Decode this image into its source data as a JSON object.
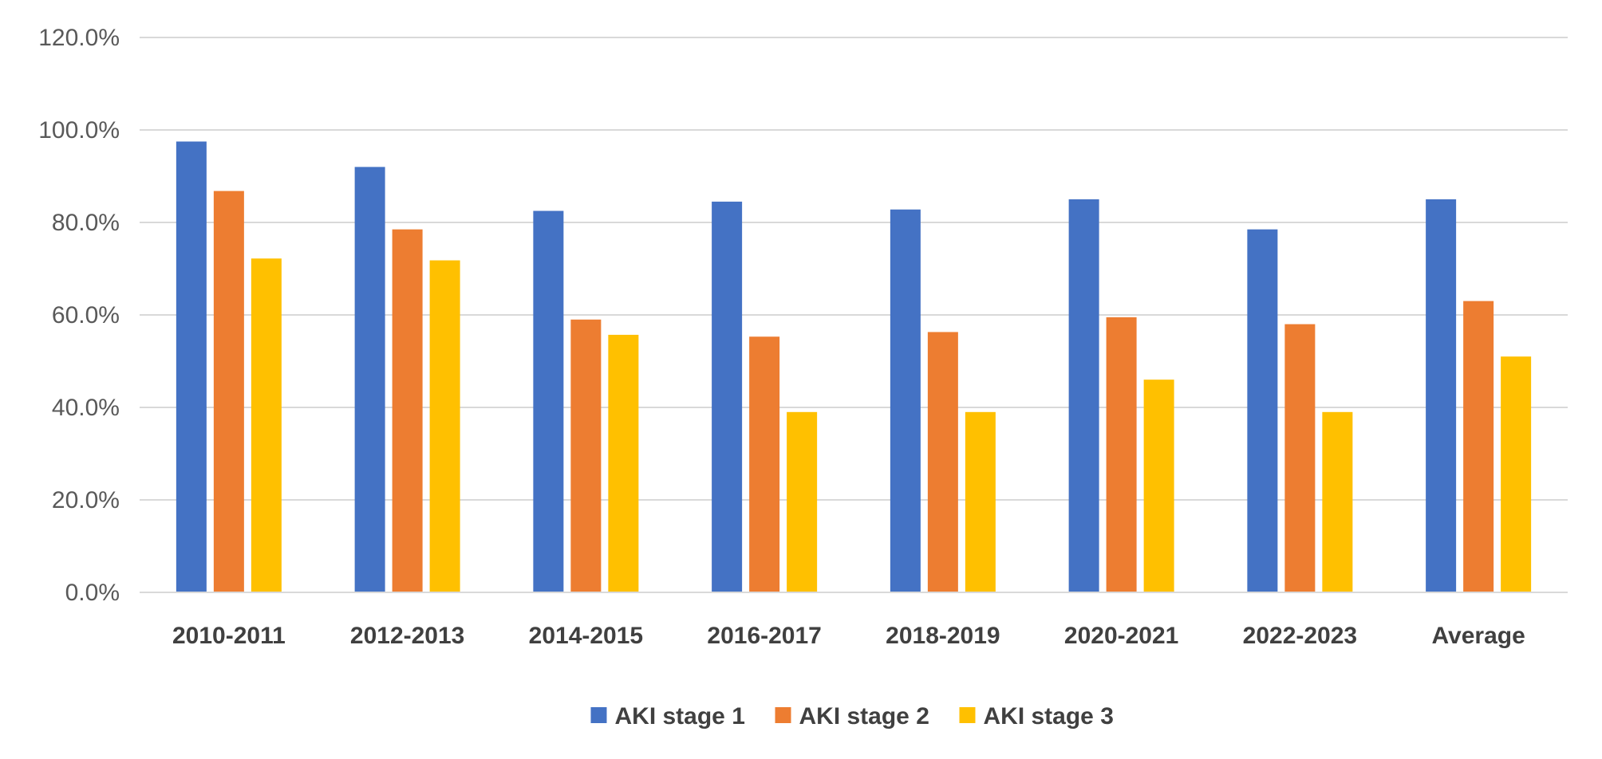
{
  "chart_data": {
    "type": "bar",
    "title": "",
    "xlabel": "",
    "ylabel": "",
    "ylim": [
      0,
      120
    ],
    "yticks": [
      "0.0%",
      "20.0%",
      "40.0%",
      "60.0%",
      "80.0%",
      "100.0%",
      "120.0%"
    ],
    "grid": true,
    "legend_position": "bottom",
    "categories": [
      "2010-2011",
      "2012-2013",
      "2014-2015",
      "2016-2017",
      "2018-2019",
      "2020-2021",
      "2022-2023",
      "Average"
    ],
    "series": [
      {
        "name": "AKI stage 1",
        "color": "#4472C4",
        "values": [
          97.5,
          92.0,
          82.5,
          84.5,
          82.8,
          85.0,
          78.5,
          85.0
        ]
      },
      {
        "name": "AKI stage 2",
        "color": "#ED7D31",
        "values": [
          86.8,
          78.5,
          59.0,
          55.3,
          56.3,
          59.5,
          58.0,
          63.0
        ]
      },
      {
        "name": "AKI stage 3",
        "color": "#FFC000",
        "values": [
          72.2,
          71.8,
          55.7,
          39.0,
          39.0,
          46.0,
          39.0,
          51.0
        ]
      }
    ]
  }
}
